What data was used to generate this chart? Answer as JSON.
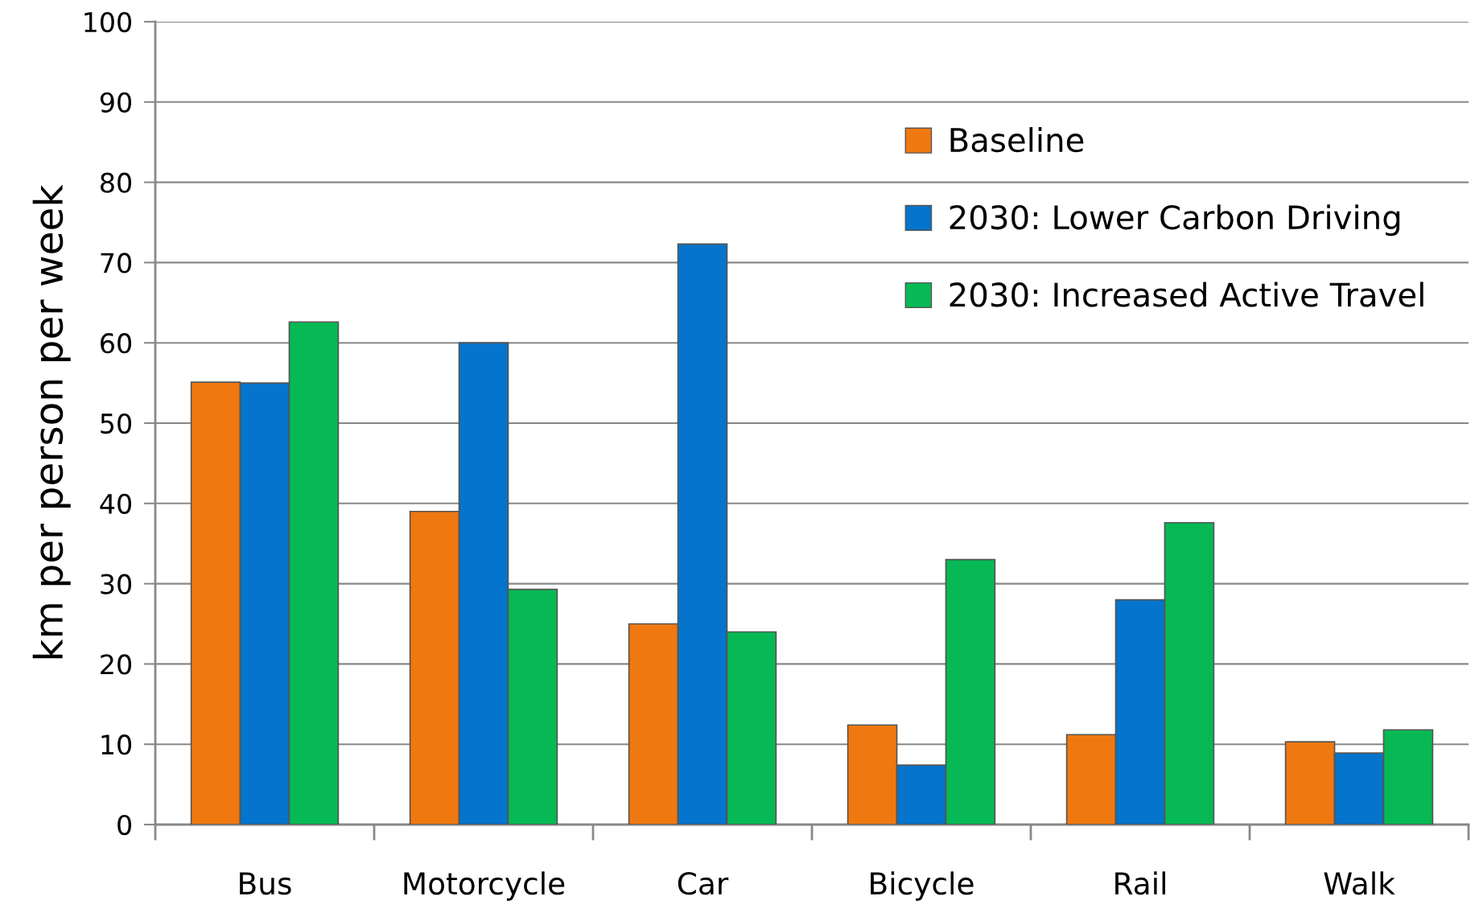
{
  "chart_data": {
    "type": "bar",
    "ylabel": "km per person per week",
    "categories": [
      "Bus",
      "Motorcycle",
      "Car",
      "Bicycle",
      "Rail",
      "Walk"
    ],
    "series": [
      {
        "name": "Baseline",
        "color": "#f07810",
        "values": [
          55.1,
          39.0,
          25.0,
          12.4,
          11.2,
          10.3
        ]
      },
      {
        "name": "2030: Lower Carbon Driving",
        "color": "#0574cc",
        "values": [
          55.0,
          60.0,
          72.3,
          7.4,
          28.0,
          8.9
        ]
      },
      {
        "name": "2030: Increased Active Travel",
        "color": "#07b955",
        "values": [
          62.6,
          29.3,
          24.0,
          33.0,
          37.6,
          11.8
        ]
      }
    ],
    "ylim": [
      0,
      100
    ],
    "yticks": [
      0,
      10,
      20,
      30,
      40,
      50,
      60,
      70,
      80,
      90,
      100
    ],
    "grid": "y",
    "legend": "top right"
  }
}
